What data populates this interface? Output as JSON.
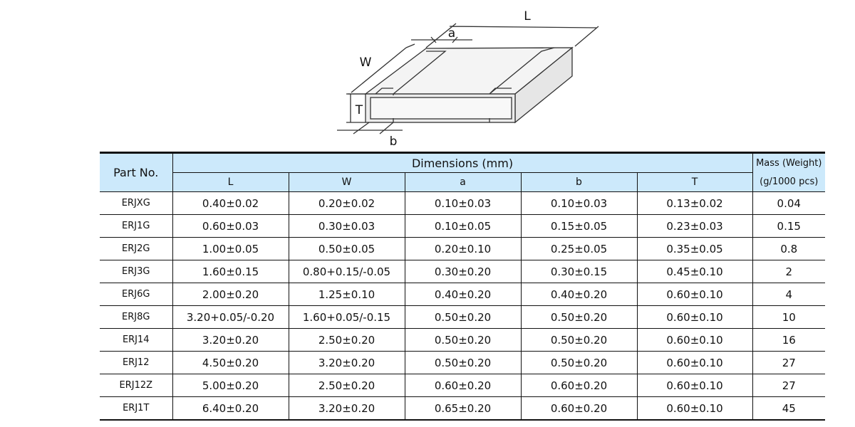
{
  "diagram": {
    "labels": {
      "L": "L",
      "W": "W",
      "a": "a",
      "b": "b",
      "T": "T"
    }
  },
  "table": {
    "part_header": "Part No.",
    "dimensions_header": "Dimensions  (mm)",
    "mass_header_line1": "Mass (Weight)",
    "mass_header_line2": "(g/1000 pcs)",
    "sub_headers": [
      "L",
      "W",
      "a",
      "b",
      "T"
    ],
    "rows": [
      [
        "ERJXG",
        "0.40±0.02",
        "0.20±0.02",
        "0.10±0.03",
        "0.10±0.03",
        "0.13±0.02",
        "0.04"
      ],
      [
        "ERJ1G",
        "0.60±0.03",
        "0.30±0.03",
        "0.10±0.05",
        "0.15±0.05",
        "0.23±0.03",
        "0.15"
      ],
      [
        "ERJ2G",
        "1.00±0.05",
        "0.50±0.05",
        "0.20±0.10",
        "0.25±0.05",
        "0.35±0.05",
        "0.8"
      ],
      [
        "ERJ3G",
        "1.60±0.15",
        "0.80+0.15/-0.05",
        "0.30±0.20",
        "0.30±0.15",
        "0.45±0.10",
        "2"
      ],
      [
        "ERJ6G",
        "2.00±0.20",
        "1.25±0.10",
        "0.40±0.20",
        "0.40±0.20",
        "0.60±0.10",
        "4"
      ],
      [
        "ERJ8G",
        "3.20+0.05/-0.20",
        "1.60+0.05/-0.15",
        "0.50±0.20",
        "0.50±0.20",
        "0.60±0.10",
        "10"
      ],
      [
        "ERJ14",
        "3.20±0.20",
        "2.50±0.20",
        "0.50±0.20",
        "0.50±0.20",
        "0.60±0.10",
        "16"
      ],
      [
        "ERJ12",
        "4.50±0.20",
        "3.20±0.20",
        "0.50±0.20",
        "0.50±0.20",
        "0.60±0.10",
        "27"
      ],
      [
        "ERJ12Z",
        "5.00±0.20",
        "2.50±0.20",
        "0.60±0.20",
        "0.60±0.20",
        "0.60±0.10",
        "27"
      ],
      [
        "ERJ1T",
        "6.40±0.20",
        "3.20±0.20",
        "0.65±0.20",
        "0.60±0.20",
        "0.60±0.10",
        "45"
      ]
    ]
  }
}
